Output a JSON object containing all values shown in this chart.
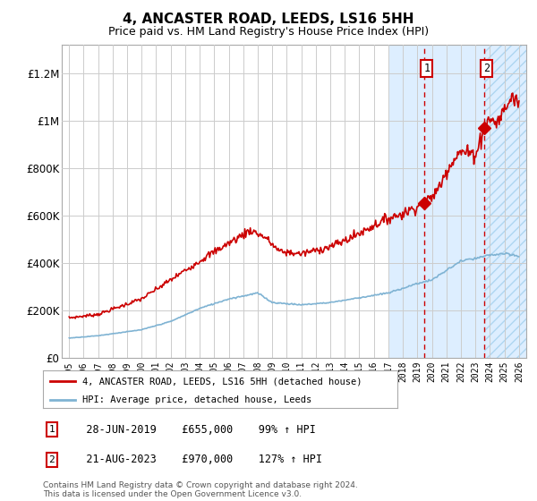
{
  "title": "4, ANCASTER ROAD, LEEDS, LS16 5HH",
  "subtitle": "Price paid vs. HM Land Registry's House Price Index (HPI)",
  "ylabel_ticks": [
    0,
    200000,
    400000,
    600000,
    800000,
    1000000,
    1200000
  ],
  "ylabel_labels": [
    "£0",
    "£200K",
    "£400K",
    "£600K",
    "£800K",
    "£1M",
    "£1.2M"
  ],
  "xlim_years": [
    1994.5,
    2026.5
  ],
  "ylim": [
    0,
    1320000
  ],
  "sale1_year": 2019.49,
  "sale1_price": 655000,
  "sale1_label": "1",
  "sale1_date": "28-JUN-2019",
  "sale1_pct": "99%",
  "sale2_year": 2023.63,
  "sale2_price": 970000,
  "sale2_label": "2",
  "sale2_date": "21-AUG-2023",
  "sale2_pct": "127%",
  "shade_start": 2017.0,
  "hatch_start": 2023.63,
  "line1_color": "#cc0000",
  "line2_color": "#7fb3d3",
  "shade_color": "#ddeeff",
  "legend1": "4, ANCASTER ROAD, LEEDS, LS16 5HH (detached house)",
  "legend2": "HPI: Average price, detached house, Leeds",
  "footnote": "Contains HM Land Registry data © Crown copyright and database right 2024.\nThis data is licensed under the Open Government Licence v3.0.",
  "table_rows": [
    [
      "1",
      "28-JUN-2019",
      "£655,000",
      "99% ↑ HPI"
    ],
    [
      "2",
      "21-AUG-2023",
      "£970,000",
      "127% ↑ HPI"
    ]
  ]
}
